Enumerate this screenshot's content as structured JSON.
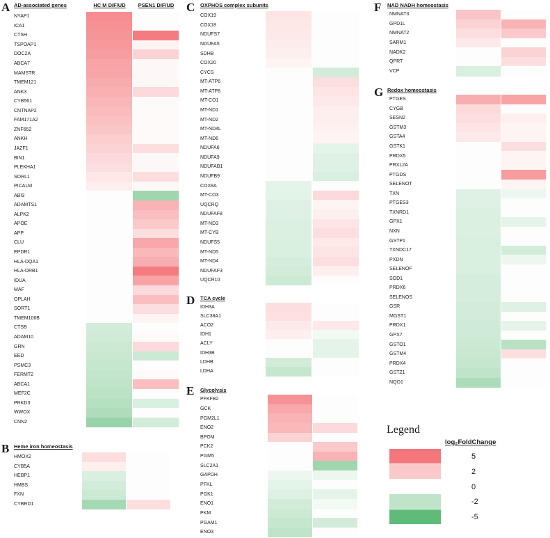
{
  "chart_data": {
    "type": "heatmap",
    "value_label": "log2FoldChange",
    "legend": {
      "title": "Legend",
      "subtitle": "log₂FoldChange",
      "entries": [
        {
          "label": "5",
          "value": 5
        },
        {
          "label": "2",
          "value": 2
        },
        {
          "label": "0",
          "value": 0
        },
        {
          "label": "-2",
          "value": -2
        },
        {
          "label": "-5",
          "value": -5
        }
      ]
    },
    "colors": {
      "pos_max": "#f4777b",
      "zero": "#ffffff",
      "neg_max": "#5fbb78"
    },
    "panels": [
      {
        "id": "A",
        "title": "AD-associated genes",
        "columns": [
          "HC M DIF/UD",
          "PSEN1 DIF/UD"
        ],
        "genes": [
          "NYAP1",
          "ICA1",
          "CTSH",
          "TSPOAP1",
          "DOC2A",
          "ABCA7",
          "MAMSTR",
          "TMEM121",
          "ANK3",
          "CYB561",
          "CNTNAP2",
          "FAM171A2",
          "ZNF652",
          "ANKH",
          "JAZF1",
          "BIN1",
          "PLEKHA1",
          "SORL1",
          "PICALM",
          "ABI3",
          "ADAMTS1",
          "ALPK2",
          "APOE",
          "APP",
          "CLU",
          "EPDR1",
          "HLA-DQA1",
          "HLA-DRB1",
          "IDUA",
          "MAF",
          "OPLAH",
          "SORT1",
          "TMEM106B",
          "CTSB",
          "ADAM10",
          "GRN",
          "EED",
          "PSMC3",
          "FERMT2",
          "ABCA1",
          "MEF2C",
          "PRKD3",
          "WWOX",
          "CNN2"
        ],
        "values": [
          [
            4.2,
            0
          ],
          [
            4.0,
            0
          ],
          [
            3.9,
            4.8
          ],
          [
            3.8,
            0.4
          ],
          [
            3.6,
            1.6
          ],
          [
            3.4,
            0.3
          ],
          [
            3.3,
            0.3
          ],
          [
            3.1,
            0.3
          ],
          [
            2.9,
            1.4
          ],
          [
            2.7,
            0.2
          ],
          [
            2.5,
            0.2
          ],
          [
            2.3,
            0.2
          ],
          [
            2.1,
            0.2
          ],
          [
            1.8,
            0.2
          ],
          [
            1.6,
            1.2
          ],
          [
            1.4,
            0.3
          ],
          [
            1.2,
            0.3
          ],
          [
            0.9,
            1.2
          ],
          [
            0.6,
            0.3
          ],
          [
            0,
            -3.0
          ],
          [
            0,
            2.8
          ],
          [
            0,
            2.4
          ],
          [
            0,
            2.0
          ],
          [
            0,
            1.2
          ],
          [
            0,
            3.2
          ],
          [
            0,
            2.6
          ],
          [
            0,
            3.0
          ],
          [
            0,
            4.8
          ],
          [
            0,
            3.4
          ],
          [
            0,
            1.4
          ],
          [
            0,
            2.4
          ],
          [
            0,
            1.2
          ],
          [
            0,
            0.4
          ],
          [
            -1.4,
            0
          ],
          [
            -1.5,
            0.2
          ],
          [
            -1.6,
            1.4
          ],
          [
            -1.7,
            -1.6
          ],
          [
            -1.8,
            0
          ],
          [
            -1.9,
            0.2
          ],
          [
            -2.0,
            2.4
          ],
          [
            -2.1,
            0
          ],
          [
            -2.3,
            -1.2
          ],
          [
            -2.5,
            0
          ],
          [
            -3.2,
            -1.4
          ]
        ]
      },
      {
        "id": "B",
        "title": "Heme iron homeostasis",
        "columns": [
          "HC M DIF/UD",
          "PSEN1 DIF/UD"
        ],
        "genes": [
          "HMOX2",
          "CYB5A",
          "HEBP1",
          "HMBS",
          "FXN",
          "CYBRD1"
        ],
        "values": [
          [
            1.2,
            0
          ],
          [
            0.6,
            0
          ],
          [
            -1.2,
            0
          ],
          [
            -1.4,
            0
          ],
          [
            -1.6,
            0
          ],
          [
            -2.8,
            1.2
          ]
        ]
      },
      {
        "id": "C",
        "title": "OXPHOS complex subunits",
        "columns": [
          "HC M DIF/UD",
          "PSEN1 DIF/UD"
        ],
        "genes": [
          "COX19",
          "COX18",
          "NDUFS7",
          "NDUFA5",
          "SDHB",
          "COX20",
          "CYCS",
          "MT-ATP6",
          "MT-ATP8",
          "MT-CO1",
          "MT-ND1",
          "MT-ND2",
          "MT-ND4L",
          "MT-ND6",
          "NDUFA6",
          "NDUFA9",
          "NDUFAB1",
          "NDUFB9",
          "COX8A",
          "MT-CO3",
          "UQCRQ",
          "NDUFAF8",
          "MT-ND3",
          "MT-CYB",
          "NDUFS5",
          "MT-ND5",
          "MT-ND4",
          "NDUFAF3",
          "UQCR10"
        ],
        "values": [
          [
            1.0,
            0
          ],
          [
            0.9,
            0
          ],
          [
            0.8,
            0
          ],
          [
            0.7,
            0
          ],
          [
            0.6,
            0
          ],
          [
            0.4,
            0
          ],
          [
            0,
            -1.4
          ],
          [
            0,
            1.2
          ],
          [
            0,
            1.0
          ],
          [
            0,
            0.8
          ],
          [
            0,
            0.6
          ],
          [
            0,
            0.6
          ],
          [
            0,
            0.5
          ],
          [
            0,
            0.4
          ],
          [
            0,
            -0.8
          ],
          [
            0,
            -1.0
          ],
          [
            0,
            -1.0
          ],
          [
            0,
            -1.2
          ],
          [
            -0.8,
            0
          ],
          [
            -0.9,
            1.4
          ],
          [
            -1.0,
            0.4
          ],
          [
            -1.0,
            0.6
          ],
          [
            -1.1,
            1.0
          ],
          [
            -1.1,
            1.2
          ],
          [
            -1.2,
            0.8
          ],
          [
            -1.2,
            1.0
          ],
          [
            -1.3,
            1.2
          ],
          [
            -1.4,
            0.6
          ],
          [
            -1.6,
            0
          ]
        ]
      },
      {
        "id": "D",
        "title": "TCA cycle",
        "columns": [
          "HC M DIF/UD",
          "PSEN1 DIF/UD"
        ],
        "genes": [
          "IDH3A",
          "SLC38A1",
          "ACO2",
          "IDH1",
          "ACLY",
          "IDH3B",
          "LDHB",
          "LDHA"
        ],
        "values": [
          [
            1.2,
            0
          ],
          [
            1.1,
            0
          ],
          [
            0.8,
            0.8
          ],
          [
            0.6,
            -0.4
          ],
          [
            0,
            -0.8
          ],
          [
            0,
            -0.8
          ],
          [
            -1.4,
            0
          ],
          [
            -1.8,
            0
          ]
        ]
      },
      {
        "id": "E",
        "title": "Glycolysis",
        "columns": [
          "HC M DIF/UD",
          "PSEN1 DIF/UD"
        ],
        "genes": [
          "PFKFB2",
          "GCK",
          "PGM2L1",
          "ENO2",
          "BPGM",
          "PCK2",
          "PGM5",
          "SLC2A1",
          "GAPDH",
          "PFKL",
          "PGK1",
          "ENO1",
          "PKM",
          "PGAM1",
          "ENO3"
        ],
        "values": [
          [
            4.0,
            0
          ],
          [
            3.2,
            0
          ],
          [
            2.8,
            0
          ],
          [
            2.6,
            1.4
          ],
          [
            1.6,
            0
          ],
          [
            0,
            2.0
          ],
          [
            0,
            2.8
          ],
          [
            0,
            -3.0
          ],
          [
            -0.6,
            -0.6
          ],
          [
            -0.8,
            0
          ],
          [
            -1.0,
            -0.8
          ],
          [
            -1.4,
            -0.4
          ],
          [
            -1.6,
            0
          ],
          [
            -1.8,
            -1.4
          ],
          [
            -2.0,
            0
          ]
        ]
      },
      {
        "id": "F",
        "title": "NAD NADH homeostasis",
        "columns": [
          "HC M DIF/UD",
          "PSEN1 DIF/UD"
        ],
        "genes": [
          "NMNAT3",
          "GPD1L",
          "NMNAT2",
          "SARM1",
          "NADK2",
          "QPRT",
          "VCP"
        ],
        "values": [
          [
            2.2,
            0
          ],
          [
            1.6,
            2.8
          ],
          [
            1.2,
            2.0
          ],
          [
            0.8,
            0
          ],
          [
            0,
            1.6
          ],
          [
            0,
            1.2
          ],
          [
            -1.2,
            0
          ]
        ]
      },
      {
        "id": "G",
        "title": "Redox homeostasis",
        "columns": [
          "HC M DIF/UD",
          "PSEN1 DIF/UD"
        ],
        "genes": [
          "PTGES",
          "CYGB",
          "SESN2",
          "GSTM3",
          "GSTA4",
          "GSTK1",
          "PRDX5",
          "PRXL2A",
          "PTGDS",
          "SELENOT",
          "TXN",
          "PTGES3",
          "TXNRD1",
          "GPX1",
          "NXN",
          "GSTP1",
          "TXNDC17",
          "PXDN",
          "SELENOF",
          "SOD1",
          "PRDX6",
          "SELENOS",
          "GSR",
          "MGST1",
          "PRDX1",
          "GPX7",
          "GSTO1",
          "GSTM4",
          "PRDX4",
          "GSTZ1",
          "NQO1"
        ],
        "values": [
          [
            3.0,
            3.4
          ],
          [
            1.4,
            0
          ],
          [
            1.2,
            0.6
          ],
          [
            1.0,
            0.4
          ],
          [
            0.8,
            0.4
          ],
          [
            0,
            1.2
          ],
          [
            0,
            0.4
          ],
          [
            0,
            0.4
          ],
          [
            0,
            3.6
          ],
          [
            0,
            0.4
          ],
          [
            -1.0,
            -0.6
          ],
          [
            -1.0,
            0
          ],
          [
            -1.1,
            0
          ],
          [
            -1.1,
            -0.8
          ],
          [
            -1.1,
            0
          ],
          [
            -1.2,
            0
          ],
          [
            -1.2,
            -1.4
          ],
          [
            -1.2,
            -0.6
          ],
          [
            -1.2,
            0
          ],
          [
            -1.3,
            0
          ],
          [
            -1.3,
            0
          ],
          [
            -1.3,
            0
          ],
          [
            -1.4,
            -1.0
          ],
          [
            -1.4,
            0
          ],
          [
            -1.5,
            -0.8
          ],
          [
            -1.5,
            0
          ],
          [
            -1.6,
            -2.2
          ],
          [
            -1.7,
            1.2
          ],
          [
            -1.8,
            0
          ],
          [
            -2.0,
            0
          ],
          [
            -2.6,
            0
          ]
        ]
      }
    ]
  }
}
